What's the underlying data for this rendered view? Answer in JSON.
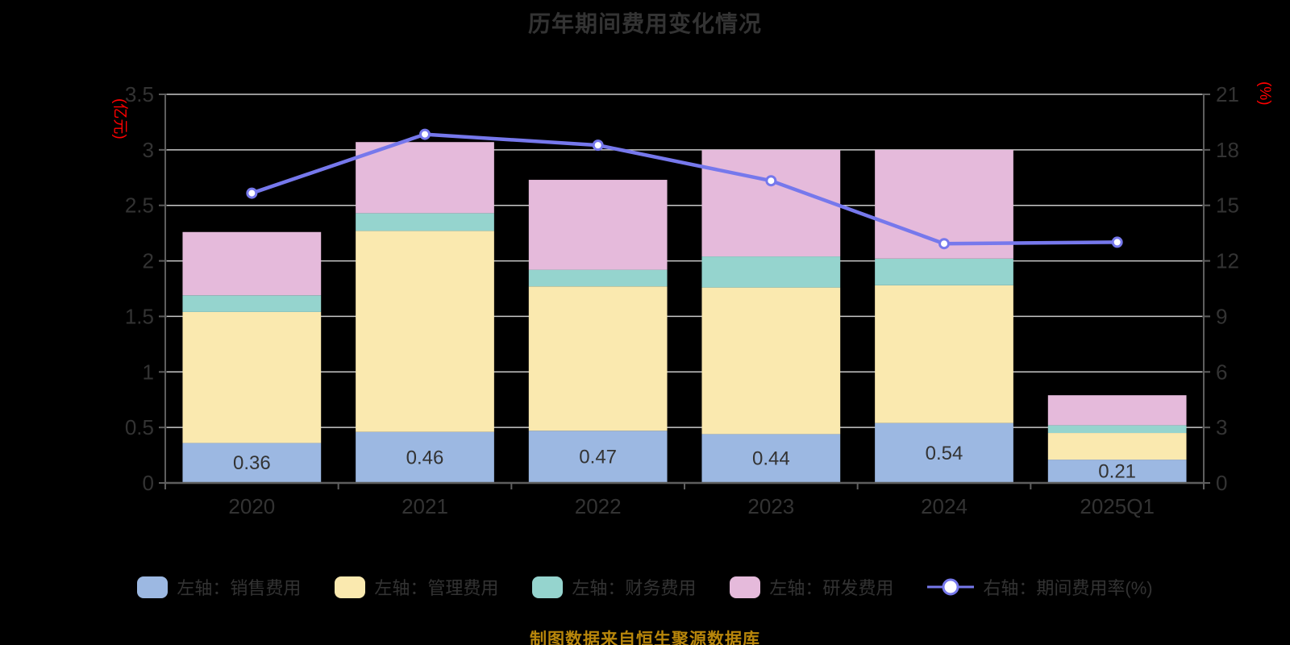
{
  "title": "历年期间费用变化情况",
  "footer": "制图数据来自恒生聚源数据库",
  "colors": {
    "background": "#000000",
    "text": "#333333",
    "grid": "#C9C9C9",
    "axis": "#5E5E5E",
    "axis_unit": "#FF0000",
    "line": "#7678EC",
    "marker_fill": "#FFFFFF",
    "bar_label": "#333333",
    "footer": "#B8860B"
  },
  "chart_data": {
    "type": "bar",
    "subtype": "stacked-bars-with-right-axis-line",
    "title": "历年期间费用变化情况",
    "categories": [
      "2020",
      "2021",
      "2022",
      "2023",
      "2024",
      "2025Q1"
    ],
    "series": [
      {
        "name": "左轴：销售费用",
        "axis": "left",
        "color": "#9CB8E2",
        "values": [
          0.36,
          0.46,
          0.47,
          0.44,
          0.54,
          0.21
        ]
      },
      {
        "name": "左轴：管理费用",
        "axis": "left",
        "color": "#FAE9AF",
        "values": [
          1.18,
          1.81,
          1.3,
          1.32,
          1.24,
          0.24
        ]
      },
      {
        "name": "左轴：财务费用",
        "axis": "left",
        "color": "#95D4CE",
        "values": [
          0.15,
          0.16,
          0.15,
          0.28,
          0.24,
          0.07
        ]
      },
      {
        "name": "左轴：研发费用",
        "axis": "left",
        "color": "#E5BADB",
        "values": [
          0.57,
          0.64,
          0.81,
          0.96,
          0.98,
          0.27
        ]
      }
    ],
    "line_series": {
      "name": "右轴：期间费用率(%)",
      "axis": "right",
      "color": "#7678EC",
      "values": [
        15.66,
        18.84,
        18.25,
        16.33,
        12.93,
        13.01
      ]
    },
    "bar_labels": [
      "0.36",
      "0.46",
      "0.47",
      "0.44",
      "0.54",
      "0.21"
    ],
    "left_axis": {
      "name": "(亿元)",
      "min": 0,
      "max": 3.5,
      "tick_labels": [
        "0",
        "0.5",
        "1",
        "1.5",
        "2",
        "2.5",
        "3",
        "3.5"
      ]
    },
    "right_axis": {
      "name": "(%)",
      "min": 0,
      "max": 21,
      "tick_labels": [
        "0",
        "3",
        "6",
        "9",
        "12",
        "15",
        "18",
        "21"
      ]
    },
    "grid": true,
    "legend_position": "bottom"
  }
}
